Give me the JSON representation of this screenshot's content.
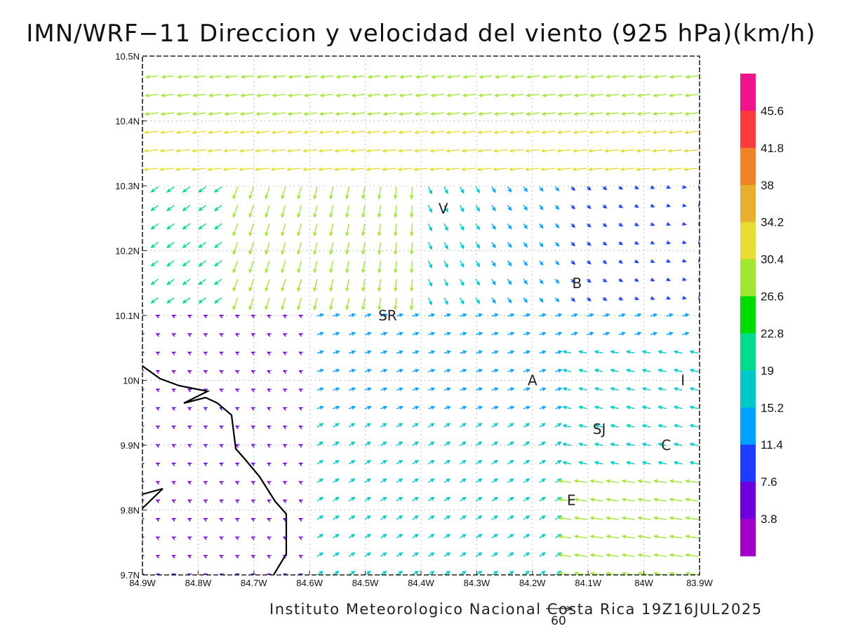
{
  "title": "IMN/WRF−11 Direccion y velocidad del viento (925 hPa)(km/h)",
  "footer": "Instituto Meteorologico Nacional Costa Rica 19Z16JUL2025",
  "reference_vector": {
    "label": "60",
    "speed": 60
  },
  "map": {
    "lon_range": [
      -84.9,
      -83.9
    ],
    "lat_range": [
      9.7,
      10.5
    ],
    "lon_ticks": [
      "84.9W",
      "84.8W",
      "84.7W",
      "84.6W",
      "84.5W",
      "84.4W",
      "84.3W",
      "84.2W",
      "84.1W",
      "84W",
      "83.9W"
    ],
    "lat_ticks": [
      "9.7N",
      "9.8N",
      "9.9N",
      "10N",
      "10.1N",
      "10.2N",
      "10.3N",
      "10.4N",
      "10.5N"
    ],
    "grid": "dotted",
    "cities": [
      {
        "label": "V",
        "lon": -84.36,
        "lat": 10.265
      },
      {
        "label": "B",
        "lon": -84.12,
        "lat": 10.15
      },
      {
        "label": "SR",
        "lon": -84.46,
        "lat": 10.1
      },
      {
        "label": "A",
        "lon": -84.2,
        "lat": 10.0
      },
      {
        "label": "I",
        "lon": -83.93,
        "lat": 10.0
      },
      {
        "label": "SJ",
        "lon": -84.08,
        "lat": 9.925
      },
      {
        "label": "C",
        "lon": -83.96,
        "lat": 9.9
      },
      {
        "label": "E",
        "lon": -84.13,
        "lat": 9.815
      }
    ]
  },
  "colorbar": {
    "labels": [
      "45.6",
      "41.8",
      "38",
      "34.2",
      "30.4",
      "26.6",
      "22.8",
      "19",
      "15.2",
      "11.4",
      "7.6",
      "3.8"
    ],
    "colors": [
      "#f0148c",
      "#fa3c3c",
      "#f08228",
      "#e6af2d",
      "#e6dc32",
      "#a0e632",
      "#00dc00",
      "#00dc8c",
      "#00c8c8",
      "#00a0ff",
      "#1e3cff",
      "#6e00dc",
      "#a000c8"
    ]
  }
}
